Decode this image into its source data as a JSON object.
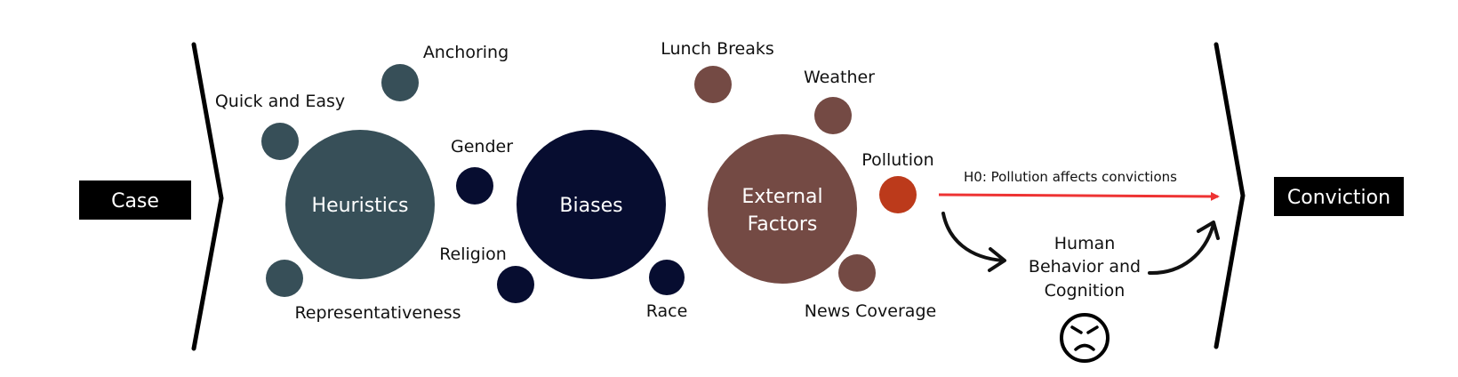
{
  "endpoints": {
    "start": "Case",
    "end": "Conviction"
  },
  "groups": {
    "heuristics": {
      "label": "Heuristics"
    },
    "biases": {
      "label": "Biases"
    },
    "external": {
      "label_line1": "External",
      "label_line2": "Factors"
    }
  },
  "factors": {
    "anchoring": "Anchoring",
    "quick_and_easy": "Quick and Easy",
    "representativeness": "Representativeness",
    "gender": "Gender",
    "religion": "Religion",
    "race": "Race",
    "lunch_breaks": "Lunch Breaks",
    "weather": "Weather",
    "pollution": "Pollution",
    "news_coverage": "News Coverage"
  },
  "hypothesis": {
    "label": "H0: Pollution affects convictions"
  },
  "mediator": {
    "line1": "Human",
    "line2": "Behavior and",
    "line3": "Cognition"
  },
  "colors": {
    "heuristics": "#374f58",
    "biases": "#070d30",
    "external": "#744a44",
    "pollution": "#bc3a1b",
    "hypothesis_arrow": "#ee3333",
    "endpoint_box": "#000000",
    "endpoint_text": "#ffffff",
    "ink": "#111111"
  },
  "icons": {
    "mediator_face": "angry-face-icon",
    "arrow_head": "arrow-right-icon"
  }
}
